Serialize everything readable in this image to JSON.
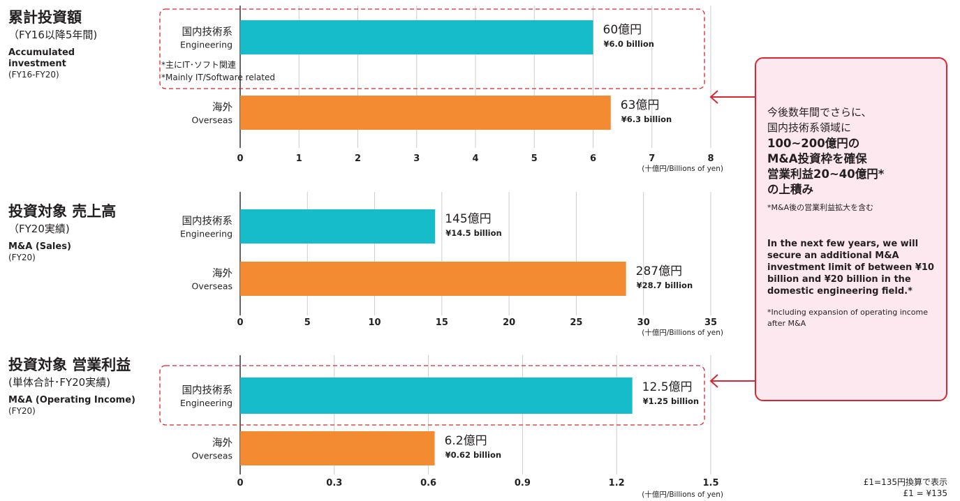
{
  "sections": [
    {
      "title_ja": "累計投資額",
      "sub_ja": "（FY16以降5年間)",
      "title_en": "Accumulated investment",
      "sub_en": "(FY16-FY20)"
    },
    {
      "title_ja": "投資対象 売上高",
      "sub_ja": "（FY20実績)",
      "title_en": "M&A (Sales)",
      "sub_en": "(FY20)"
    },
    {
      "title_ja": "投資対象 営業利益",
      "sub_ja": "(単体合計･FY20実績)",
      "title_en": "M&A (Operating Income)",
      "sub_en": "(FY20)"
    }
  ],
  "bar_labels": {
    "engineering_ja": "国内技術系",
    "engineering_en": "Engineering",
    "overseas_ja": "海外",
    "overseas_en": "Overseas"
  },
  "note_it": {
    "ja": "*主にIT･ソフト関連",
    "en": "*Mainly IT/Software related"
  },
  "callout": {
    "jp_line1": "今後数年間でさらに、",
    "jp_line2": "国内技術系領域に",
    "jp_bold": [
      "100~200億円の",
      "M&A投資枠を確保",
      "営業利益20~40億円*",
      "の上積み"
    ],
    "jp_note": "*M&A後の営業利益拡大を含む",
    "en_text": "In the next few years, we will secure an additional M&A investment limit of between ¥10 billion and ¥20 billion in the domestic engineering field.*",
    "en_note": "*Including expansion of operating income after M&A"
  },
  "footnote": {
    "line1": "£1=135円換算で表示",
    "line2": "£1 = ¥135"
  },
  "colors": {
    "engineering": "#17bccb",
    "overseas": "#f28b31",
    "highlight": "#d9262f",
    "callout_bg": "#fde8ef",
    "grid": "#cccccc"
  },
  "chart_data": [
    {
      "type": "bar",
      "orientation": "horizontal",
      "categories": [
        "国内技術系 Engineering",
        "海外 Overseas"
      ],
      "values": [
        6.0,
        6.3
      ],
      "value_labels_ja": [
        "60億円",
        "63億円"
      ],
      "value_labels_en": [
        "¥6.0 billion",
        "¥6.3 billion"
      ],
      "xticks": [
        "0",
        "1",
        "2",
        "3",
        "4",
        "5",
        "6",
        "7",
        "8"
      ],
      "xlim": [
        0,
        8
      ],
      "xlabel": "(十億円/Billions of yen)",
      "highlight_engineering": true
    },
    {
      "type": "bar",
      "orientation": "horizontal",
      "categories": [
        "国内技術系 Engineering",
        "海外 Overseas"
      ],
      "values": [
        14.5,
        28.7
      ],
      "value_labels_ja": [
        "145億円",
        "287億円"
      ],
      "value_labels_en": [
        "¥14.5 billion",
        "¥28.7 billion"
      ],
      "xticks": [
        "0",
        "5",
        "10",
        "15",
        "20",
        "25",
        "30",
        "35"
      ],
      "xlim": [
        0,
        35
      ],
      "xlabel": "(十億円/Billions of yen)",
      "highlight_engineering": false
    },
    {
      "type": "bar",
      "orientation": "horizontal",
      "categories": [
        "国内技術系 Engineering",
        "海外 Overseas"
      ],
      "values": [
        1.25,
        0.62
      ],
      "value_labels_ja": [
        "12.5億円",
        "6.2億円"
      ],
      "value_labels_en": [
        "¥1.25 billion",
        "¥0.62 billion"
      ],
      "xticks": [
        "0",
        "0.3",
        "0.6",
        "0.9",
        "1.2",
        "1.5"
      ],
      "xlim": [
        0,
        1.5
      ],
      "xlabel": "(十億円/Billions of yen)",
      "highlight_engineering": true
    }
  ]
}
